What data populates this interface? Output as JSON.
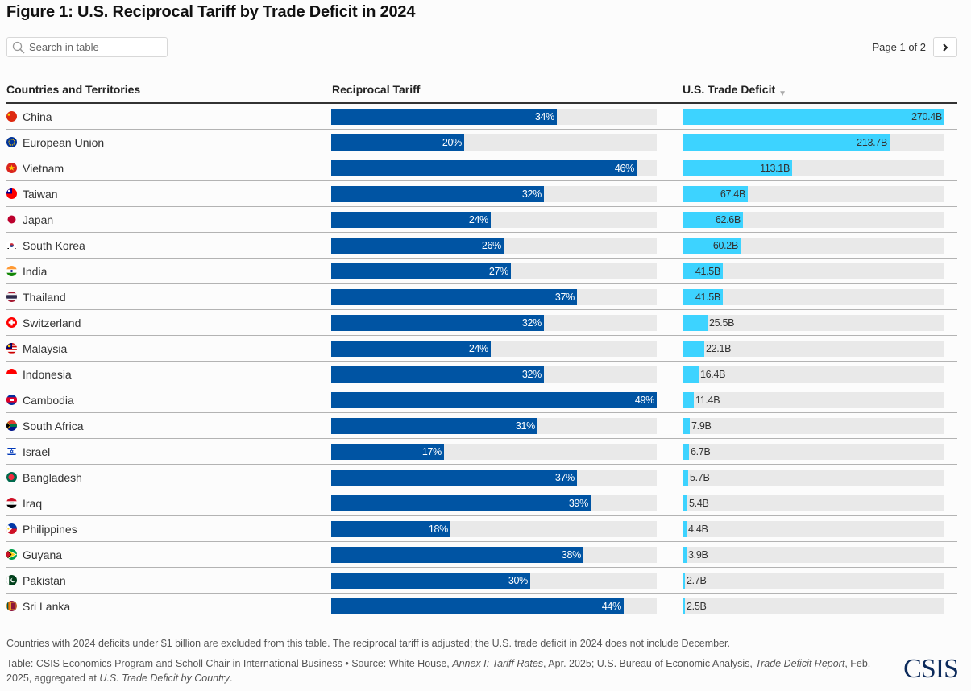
{
  "title": "Figure 1: U.S. Reciprocal Tariff by Trade Deficit in 2024",
  "search": {
    "placeholder": "Search in table",
    "value": "",
    "icon": "search-icon"
  },
  "pager": {
    "text": "Page 1 of 2",
    "next_icon": "chevron-right-icon",
    "current_page": 1,
    "total_pages": 2
  },
  "colors": {
    "tariff_bar": "#0054a3",
    "deficit_bar": "#3dd3ff",
    "track": "#e9e9e9"
  },
  "columns": {
    "country": "Countries and Territories",
    "tariff": "Reciprocal Tariff",
    "deficit": "U.S. Trade Deficit",
    "deficit_sort": "descending"
  },
  "chart_data": {
    "type": "table",
    "title": "Figure 1: U.S. Reciprocal Tariff by Trade Deficit in 2024",
    "columns": [
      "Countries and Territories",
      "Reciprocal Tariff",
      "U.S. Trade Deficit"
    ],
    "tariff_scale_max": 49,
    "deficit_scale_max": 270.4,
    "rows": [
      {
        "country": "China",
        "flag": "china-flag-icon",
        "tariff": 34,
        "tariff_label": "34%",
        "deficit": 270.4,
        "deficit_label": "270.4B"
      },
      {
        "country": "European Union",
        "flag": "eu-flag-icon",
        "tariff": 20,
        "tariff_label": "20%",
        "deficit": 213.7,
        "deficit_label": "213.7B"
      },
      {
        "country": "Vietnam",
        "flag": "vietnam-flag-icon",
        "tariff": 46,
        "tariff_label": "46%",
        "deficit": 113.1,
        "deficit_label": "113.1B"
      },
      {
        "country": "Taiwan",
        "flag": "taiwan-flag-icon",
        "tariff": 32,
        "tariff_label": "32%",
        "deficit": 67.4,
        "deficit_label": "67.4B"
      },
      {
        "country": "Japan",
        "flag": "japan-flag-icon",
        "tariff": 24,
        "tariff_label": "24%",
        "deficit": 62.6,
        "deficit_label": "62.6B"
      },
      {
        "country": "South Korea",
        "flag": "south-korea-flag-icon",
        "tariff": 26,
        "tariff_label": "26%",
        "deficit": 60.2,
        "deficit_label": "60.2B"
      },
      {
        "country": "India",
        "flag": "india-flag-icon",
        "tariff": 27,
        "tariff_label": "27%",
        "deficit": 41.5,
        "deficit_label": "41.5B"
      },
      {
        "country": "Thailand",
        "flag": "thailand-flag-icon",
        "tariff": 37,
        "tariff_label": "37%",
        "deficit": 41.5,
        "deficit_label": "41.5B"
      },
      {
        "country": "Switzerland",
        "flag": "switzerland-flag-icon",
        "tariff": 32,
        "tariff_label": "32%",
        "deficit": 25.5,
        "deficit_label": "25.5B"
      },
      {
        "country": "Malaysia",
        "flag": "malaysia-flag-icon",
        "tariff": 24,
        "tariff_label": "24%",
        "deficit": 22.1,
        "deficit_label": "22.1B"
      },
      {
        "country": "Indonesia",
        "flag": "indonesia-flag-icon",
        "tariff": 32,
        "tariff_label": "32%",
        "deficit": 16.4,
        "deficit_label": "16.4B"
      },
      {
        "country": "Cambodia",
        "flag": "cambodia-flag-icon",
        "tariff": 49,
        "tariff_label": "49%",
        "deficit": 11.4,
        "deficit_label": "11.4B"
      },
      {
        "country": "South Africa",
        "flag": "south-africa-flag-icon",
        "tariff": 31,
        "tariff_label": "31%",
        "deficit": 7.9,
        "deficit_label": "7.9B"
      },
      {
        "country": "Israel",
        "flag": "israel-flag-icon",
        "tariff": 17,
        "tariff_label": "17%",
        "deficit": 6.7,
        "deficit_label": "6.7B"
      },
      {
        "country": "Bangladesh",
        "flag": "bangladesh-flag-icon",
        "tariff": 37,
        "tariff_label": "37%",
        "deficit": 5.7,
        "deficit_label": "5.7B"
      },
      {
        "country": "Iraq",
        "flag": "iraq-flag-icon",
        "tariff": 39,
        "tariff_label": "39%",
        "deficit": 5.4,
        "deficit_label": "5.4B"
      },
      {
        "country": "Philippines",
        "flag": "philippines-flag-icon",
        "tariff": 18,
        "tariff_label": "18%",
        "deficit": 4.4,
        "deficit_label": "4.4B"
      },
      {
        "country": "Guyana",
        "flag": "guyana-flag-icon",
        "tariff": 38,
        "tariff_label": "38%",
        "deficit": 3.9,
        "deficit_label": "3.9B"
      },
      {
        "country": "Pakistan",
        "flag": "pakistan-flag-icon",
        "tariff": 30,
        "tariff_label": "30%",
        "deficit": 2.7,
        "deficit_label": "2.7B"
      },
      {
        "country": "Sri Lanka",
        "flag": "sri-lanka-flag-icon",
        "tariff": 44,
        "tariff_label": "44%",
        "deficit": 2.5,
        "deficit_label": "2.5B"
      }
    ]
  },
  "footer": {
    "note": "Countries with 2024 deficits under $1 billion are excluded from this table. The reciprocal tariff is adjusted; the U.S. trade deficit in 2024 does not include December.",
    "source_parts": [
      {
        "text": "Table: CSIS Economics Program and Scholl Chair in International Business • Source: White House, ",
        "italic": false
      },
      {
        "text": "Annex I: Tariff Rates",
        "italic": true
      },
      {
        "text": ", Apr. 2025; U.S. Bureau of Economic Analysis, ",
        "italic": false
      },
      {
        "text": "Trade Deficit Report",
        "italic": true
      },
      {
        "text": ", Feb. 2025, aggregated at ",
        "italic": false
      },
      {
        "text": "U.S. Trade Deficit by Country",
        "italic": true
      },
      {
        "text": ".",
        "italic": false
      }
    ],
    "logo": "CSIS"
  }
}
